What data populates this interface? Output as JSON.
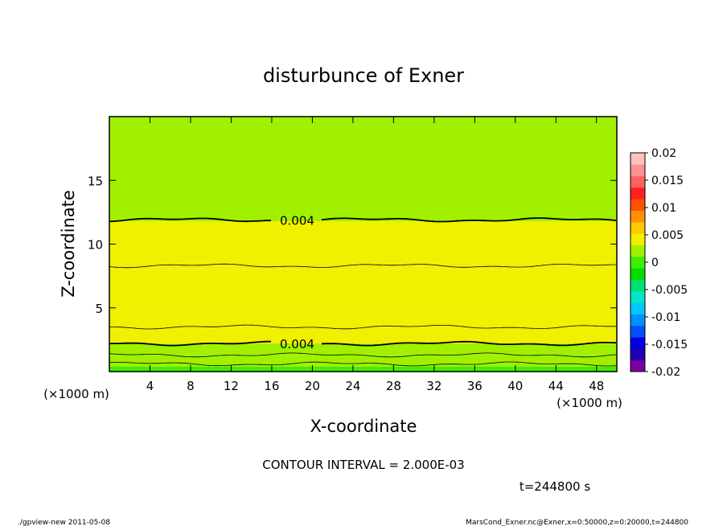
{
  "chart_data": {
    "type": "heatmap",
    "title": "disturbunce of Exner",
    "xlabel": "X-coordinate",
    "ylabel": "Z-coordinate",
    "x_unit": "(×1000 m)",
    "y_unit": "(×1000 m)",
    "xlim": [
      0,
      50
    ],
    "ylim": [
      0,
      20
    ],
    "x_ticks": [
      4,
      8,
      12,
      16,
      20,
      24,
      28,
      32,
      36,
      40,
      44,
      48
    ],
    "y_ticks": [
      5,
      10,
      15
    ],
    "colorbar": {
      "ticks": [
        "0.02",
        "0.015",
        "0.01",
        "0.005",
        "0",
        "-0.005",
        "-0.01",
        "-0.015",
        "-0.02"
      ],
      "range": [
        -0.02,
        0.02
      ],
      "colors": [
        "#7b00a0",
        "#2000b0",
        "#0000e0",
        "#0050ff",
        "#0090ff",
        "#00c8ff",
        "#00e8c8",
        "#00e070",
        "#00dd00",
        "#40ee00",
        "#a0f000",
        "#f0f000",
        "#ffc800",
        "#ff9000",
        "#ff5000",
        "#ff2020",
        "#ff6060",
        "#ff9090",
        "#ffc0c0"
      ]
    },
    "layers": [
      {
        "z_bottom": 0.0,
        "z_top": 0.4,
        "value": -0.0005
      },
      {
        "z_bottom": 0.4,
        "z_top": 1.3,
        "value": 0.0015
      },
      {
        "z_bottom": 1.3,
        "z_top": 2.2,
        "value": 0.0025
      },
      {
        "z_bottom": 2.2,
        "z_top": 3.5,
        "value": 0.0035
      },
      {
        "z_bottom": 3.5,
        "z_top": 4.6,
        "value": 0.0045
      },
      {
        "z_bottom": 4.6,
        "z_top": 6.5,
        "value": 0.0052
      },
      {
        "z_bottom": 6.5,
        "z_top": 8.0,
        "value": 0.0045
      },
      {
        "z_bottom": 8.0,
        "z_top": 11.8,
        "value": 0.0035
      },
      {
        "z_bottom": 11.8,
        "z_top": 14.0,
        "value": 0.0025
      },
      {
        "z_bottom": 14.0,
        "z_top": 20.0,
        "value": 0.0015
      }
    ],
    "contours": [
      {
        "z": 0.6,
        "level": "0.000"
      },
      {
        "z": 1.3,
        "level": "0.002"
      },
      {
        "z": 2.2,
        "level": "0.004",
        "label": "0.004",
        "label_x": 18.5
      },
      {
        "z": 3.5,
        "level": "0.006"
      },
      {
        "z": 8.3,
        "level": "0.006"
      },
      {
        "z": 11.9,
        "level": "0.004",
        "label": "0.004",
        "label_x": 18.5
      }
    ],
    "contour_interval": "CONTOUR INTERVAL = 2.000E-03",
    "time": "t=244800 s"
  },
  "footer": {
    "left": "./gpview-new   2011-05-08",
    "right": "MarsCond_Exner.nc@Exner,x=0:50000,z=0:20000,t=244800"
  }
}
